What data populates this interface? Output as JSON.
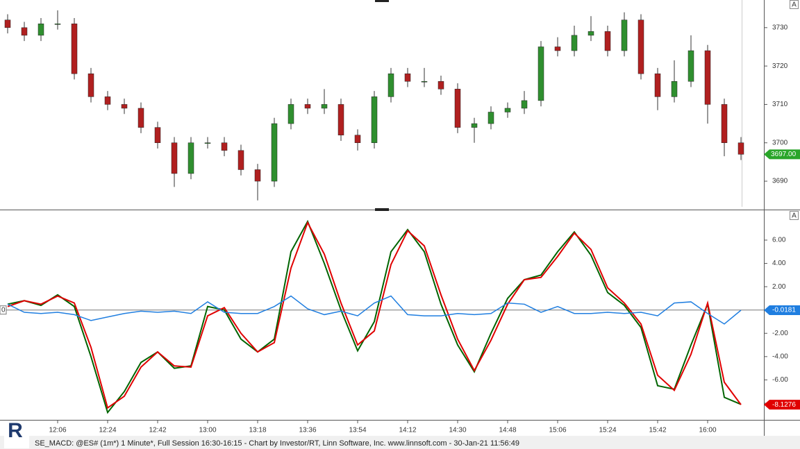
{
  "chart_data": [
    {
      "type": "candlestick",
      "x": [
        "11:48",
        "11:54",
        "12:00",
        "12:06",
        "12:12",
        "12:18",
        "12:24",
        "12:30",
        "12:36",
        "12:42",
        "12:48",
        "12:54",
        "13:00",
        "13:06",
        "13:12",
        "13:18",
        "13:24",
        "13:30",
        "13:36",
        "13:42",
        "13:48",
        "13:54",
        "14:00",
        "14:06",
        "14:12",
        "14:18",
        "14:24",
        "14:30",
        "14:36",
        "14:42",
        "14:48",
        "14:54",
        "15:00",
        "15:06",
        "15:12",
        "15:18",
        "15:24",
        "15:30",
        "15:36",
        "15:42",
        "15:48",
        "15:54",
        "16:00",
        "16:06",
        "16:12"
      ],
      "open": [
        3732,
        3730,
        3728,
        3731,
        3731,
        3718,
        3712,
        3710,
        3709,
        3704,
        3700,
        3692,
        3700,
        3700,
        3698,
        3693,
        3690,
        3705,
        3710,
        3709,
        3710,
        3702,
        3700,
        3712,
        3718,
        3716,
        3716,
        3714,
        3704,
        3705,
        3708,
        3709,
        3711,
        3725,
        3724,
        3728,
        3729,
        3724,
        3732,
        3718,
        3712,
        3716,
        3724,
        3710,
        3700
      ],
      "high": [
        3733.5,
        3731.5,
        3732.5,
        3734.5,
        3732.5,
        3719.5,
        3713.5,
        3711.5,
        3710.5,
        3705.5,
        3701.5,
        3701.5,
        3701.5,
        3701.5,
        3699.5,
        3694.5,
        3706.5,
        3711.5,
        3711.5,
        3714,
        3711.5,
        3703.5,
        3713.5,
        3719.5,
        3719.5,
        3719.5,
        3717.5,
        3715.5,
        3706.5,
        3709.5,
        3710.5,
        3713.5,
        3726.5,
        3727.5,
        3730.5,
        3733,
        3730.5,
        3734,
        3733.5,
        3719.5,
        3721.5,
        3728,
        3725.5,
        3711.5,
        3701.5
      ],
      "low": [
        3728.5,
        3726.5,
        3726.5,
        3729.5,
        3716.5,
        3710.5,
        3708.5,
        3707.5,
        3702.5,
        3698.5,
        3688.5,
        3690.5,
        3698.5,
        3696.5,
        3691.5,
        3685,
        3688.5,
        3703.5,
        3707.5,
        3707.5,
        3700.5,
        3698,
        3698.5,
        3710.5,
        3714.5,
        3714.5,
        3712.5,
        3702.5,
        3700,
        3703.5,
        3706.5,
        3707.5,
        3709.5,
        3722.5,
        3722.5,
        3726.5,
        3722.5,
        3722.5,
        3716.5,
        3708.5,
        3710.5,
        3714.5,
        3705,
        3696.5,
        3695.5
      ],
      "close": [
        3730,
        3728,
        3731,
        3731,
        3718,
        3712,
        3710,
        3709,
        3704,
        3700,
        3692,
        3700,
        3700,
        3698,
        3693,
        3690,
        3705,
        3710,
        3709,
        3710,
        3702,
        3700,
        3712,
        3718,
        3716,
        3716,
        3714,
        3704,
        3705,
        3708,
        3709,
        3711,
        3725,
        3724,
        3728,
        3729,
        3724,
        3732,
        3718,
        3712,
        3716,
        3724,
        3710,
        3700,
        3697
      ],
      "up_color": "#2f8f2f",
      "down_color": "#b02020",
      "ylim": [
        3682.6,
        3737.2
      ],
      "yticks": [
        3690,
        3700,
        3710,
        3720,
        3730
      ],
      "last_price": {
        "value": 3697,
        "label": "3697.00"
      },
      "last_price_color": "#2aa52a",
      "scale_button": "A"
    },
    {
      "type": "line",
      "x": [
        "11:48",
        "11:54",
        "12:00",
        "12:06",
        "12:12",
        "12:18",
        "12:24",
        "12:30",
        "12:36",
        "12:42",
        "12:48",
        "12:54",
        "13:00",
        "13:06",
        "13:12",
        "13:18",
        "13:24",
        "13:30",
        "13:36",
        "13:42",
        "13:48",
        "13:54",
        "14:00",
        "14:06",
        "14:12",
        "14:18",
        "14:24",
        "14:30",
        "14:36",
        "14:42",
        "14:48",
        "14:54",
        "15:00",
        "15:06",
        "15:12",
        "15:18",
        "15:24",
        "15:30",
        "15:36",
        "15:42",
        "15:48",
        "15:54",
        "16:00",
        "16:06",
        "16:12"
      ],
      "series": [
        {
          "color": "#006400",
          "values": [
            0.5,
            0.8,
            0.4,
            1.3,
            0.3,
            -4,
            -8.8,
            -7,
            -4.5,
            -3.6,
            -5,
            -4.8,
            0.3,
            0,
            -2.5,
            -3.6,
            -2.5,
            5,
            7.6,
            4,
            0,
            -3.5,
            -1,
            5,
            6.9,
            5,
            0.5,
            -3,
            -5.3,
            -2,
            1,
            2.6,
            3,
            5,
            6.7,
            4.7,
            1.5,
            0.4,
            -1.5,
            -6.5,
            -6.8,
            -3,
            0.5,
            -7.5,
            -8.1
          ]
        },
        {
          "color": "#e00000",
          "values": [
            0.3,
            0.8,
            0.5,
            1.2,
            0.6,
            -3.2,
            -8.4,
            -7.4,
            -4.9,
            -3.6,
            -4.8,
            -4.9,
            -0.5,
            0.2,
            -2,
            -3.6,
            -2.8,
            3.6,
            7.5,
            4.8,
            0.6,
            -3,
            -1.8,
            3.9,
            6.8,
            5.5,
            1.3,
            -2.5,
            -5.2,
            -2.6,
            0.5,
            2.6,
            2.8,
            4.6,
            6.6,
            5.2,
            1.9,
            0.6,
            -1.2,
            -5.6,
            -6.9,
            -3.8,
            0.6,
            -6.2,
            -8.1276
          ]
        },
        {
          "color": "#1f7ee0",
          "values": [
            0.5,
            -0.2,
            -0.3,
            -0.2,
            -0.4,
            -0.9,
            -0.6,
            -0.3,
            -0.1,
            -0.2,
            -0.1,
            -0.3,
            0.7,
            -0.2,
            -0.3,
            -0.3,
            0.3,
            1.2,
            0.1,
            -0.4,
            -0.1,
            -0.5,
            0.6,
            1.2,
            -0.4,
            -0.5,
            -0.5,
            -0.3,
            -0.4,
            -0.3,
            0.6,
            0.5,
            -0.2,
            0.3,
            -0.3,
            -0.3,
            -0.2,
            -0.3,
            -0.2,
            -0.5,
            0.6,
            0.7,
            -0.3,
            -1.2,
            -0.0181
          ]
        }
      ],
      "ylim": [
        -9.43,
        8.56
      ],
      "yticks": [
        {
          "value": -8,
          "label": "-8.00"
        },
        {
          "value": -6,
          "label": "-6.00"
        },
        {
          "value": -4,
          "label": "-4.00"
        },
        {
          "value": -2,
          "label": "-2.00"
        },
        {
          "value": 0,
          "label": "0"
        },
        {
          "value": 2,
          "label": "2.00"
        },
        {
          "value": 4,
          "label": "4.00"
        },
        {
          "value": 6,
          "label": "6.00"
        }
      ],
      "zero_line": true,
      "zero_label": "0",
      "xticks": [
        "12:06",
        "12:24",
        "12:42",
        "13:00",
        "13:18",
        "13:36",
        "13:54",
        "14:12",
        "14:30",
        "14:48",
        "15:06",
        "15:24",
        "15:42",
        "16:00"
      ],
      "scale_button": "A"
    }
  ],
  "footer": "SE_MACD: @ES# (1m*) 1 Minute*, Full Session 16:30-16:15 - Chart by Investor/RT, Linn Software, Inc. www.linnsoft.com - 30-Jan-21 11:56:49",
  "logo": "R"
}
